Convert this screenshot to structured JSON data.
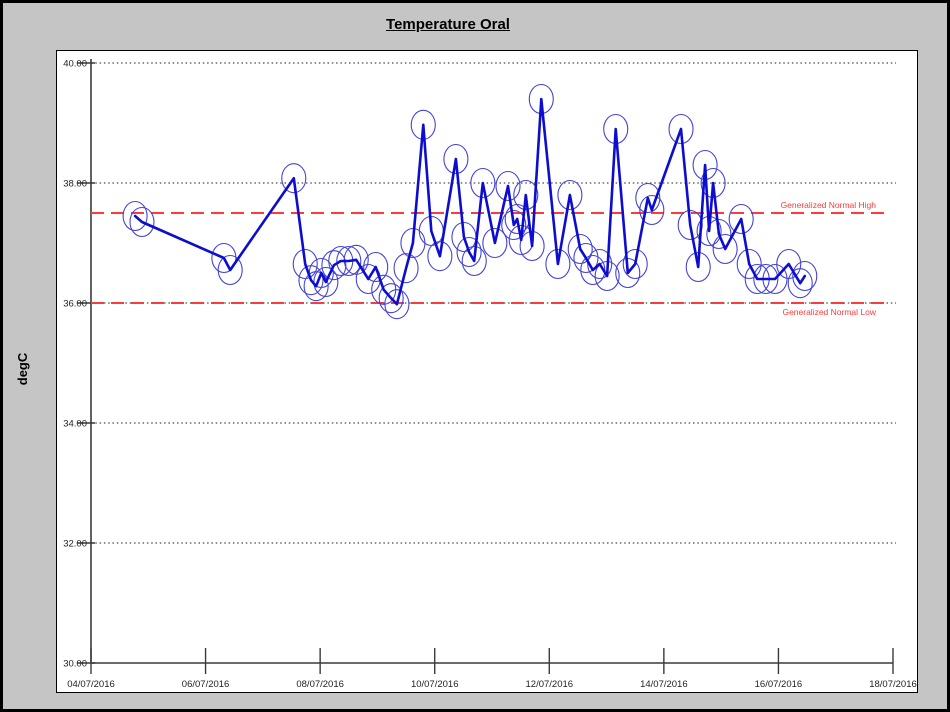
{
  "window": {
    "background": "#c5c5c5",
    "panel_background": "#ffffff",
    "border_color": "#000000"
  },
  "chart_data": {
    "type": "line",
    "title": "Temperature Oral",
    "ylabel": "degC",
    "ylim": [
      30,
      40
    ],
    "grid": "dotted-horizontal",
    "legend_position": "none",
    "axis_color": "#3a3a3a",
    "grid_color": "#4a4a4a",
    "y_ticks": [
      {
        "value": 30,
        "label": "30.00"
      },
      {
        "value": 32,
        "label": "32.00"
      },
      {
        "value": 34,
        "label": "34.00"
      },
      {
        "value": 36,
        "label": "36.00"
      },
      {
        "value": 38,
        "label": "38.00"
      },
      {
        "value": 40,
        "label": "40.00"
      }
    ],
    "x_axis_days": 14,
    "x_ticks": [
      {
        "t": 0,
        "label": "04/07/2016"
      },
      {
        "t": 2,
        "label": "06/07/2016"
      },
      {
        "t": 4,
        "label": "08/07/2016"
      },
      {
        "t": 6,
        "label": "10/07/2016"
      },
      {
        "t": 8,
        "label": "12/07/2016"
      },
      {
        "t": 10,
        "label": "14/07/2016"
      },
      {
        "t": 12,
        "label": "16/07/2016"
      },
      {
        "t": 14,
        "label": "18/07/2016"
      }
    ],
    "reference_lines": [
      {
        "label": "Generalized Normal High",
        "value": 37.5,
        "color": "#ff3a3a",
        "label_side": "above"
      },
      {
        "label": "Generalized Normal Low",
        "value": 36.0,
        "color": "#ff3a3a",
        "label_side": "below"
      }
    ],
    "series": [
      {
        "name": "Temperature Oral",
        "color": "#0d0dd0",
        "marker": "circle-outline",
        "marker_color": "#4444d6",
        "points": [
          {
            "t": 0.77,
            "temp": 37.45
          },
          {
            "t": 0.89,
            "temp": 37.35
          },
          {
            "t": 2.32,
            "temp": 36.75
          },
          {
            "t": 2.43,
            "temp": 36.55
          },
          {
            "t": 3.54,
            "temp": 38.08
          },
          {
            "t": 3.74,
            "temp": 36.65
          },
          {
            "t": 3.84,
            "temp": 36.38
          },
          {
            "t": 3.93,
            "temp": 36.28
          },
          {
            "t": 4.02,
            "temp": 36.5
          },
          {
            "t": 4.1,
            "temp": 36.35
          },
          {
            "t": 4.24,
            "temp": 36.63
          },
          {
            "t": 4.36,
            "temp": 36.7
          },
          {
            "t": 4.5,
            "temp": 36.7
          },
          {
            "t": 4.63,
            "temp": 36.72
          },
          {
            "t": 4.84,
            "temp": 36.4
          },
          {
            "t": 4.97,
            "temp": 36.6
          },
          {
            "t": 5.11,
            "temp": 36.22
          },
          {
            "t": 5.24,
            "temp": 36.08
          },
          {
            "t": 5.34,
            "temp": 35.98
          },
          {
            "t": 5.5,
            "temp": 36.58
          },
          {
            "t": 5.62,
            "temp": 37.0
          },
          {
            "t": 5.8,
            "temp": 38.97
          },
          {
            "t": 5.94,
            "temp": 37.2
          },
          {
            "t": 6.09,
            "temp": 36.78
          },
          {
            "t": 6.37,
            "temp": 38.4
          },
          {
            "t": 6.51,
            "temp": 37.1
          },
          {
            "t": 6.6,
            "temp": 36.85
          },
          {
            "t": 6.69,
            "temp": 36.7
          },
          {
            "t": 6.84,
            "temp": 38.0
          },
          {
            "t": 7.05,
            "temp": 37.0
          },
          {
            "t": 7.28,
            "temp": 37.95
          },
          {
            "t": 7.38,
            "temp": 37.3
          },
          {
            "t": 7.44,
            "temp": 37.4
          },
          {
            "t": 7.51,
            "temp": 37.05
          },
          {
            "t": 7.59,
            "temp": 37.8
          },
          {
            "t": 7.7,
            "temp": 36.95
          },
          {
            "t": 7.86,
            "temp": 39.4
          },
          {
            "t": 8.15,
            "temp": 36.65
          },
          {
            "t": 8.36,
            "temp": 37.8
          },
          {
            "t": 8.54,
            "temp": 36.9
          },
          {
            "t": 8.64,
            "temp": 36.75
          },
          {
            "t": 8.76,
            "temp": 36.55
          },
          {
            "t": 8.88,
            "temp": 36.65
          },
          {
            "t": 9.01,
            "temp": 36.45
          },
          {
            "t": 9.16,
            "temp": 38.9
          },
          {
            "t": 9.37,
            "temp": 36.5
          },
          {
            "t": 9.5,
            "temp": 36.65
          },
          {
            "t": 9.72,
            "temp": 37.75
          },
          {
            "t": 9.79,
            "temp": 37.55
          },
          {
            "t": 10.3,
            "temp": 38.9
          },
          {
            "t": 10.46,
            "temp": 37.3
          },
          {
            "t": 10.6,
            "temp": 36.6
          },
          {
            "t": 10.72,
            "temp": 38.3
          },
          {
            "t": 10.79,
            "temp": 37.2
          },
          {
            "t": 10.86,
            "temp": 38.0
          },
          {
            "t": 10.96,
            "temp": 37.15
          },
          {
            "t": 11.07,
            "temp": 36.9
          },
          {
            "t": 11.35,
            "temp": 37.4
          },
          {
            "t": 11.49,
            "temp": 36.65
          },
          {
            "t": 11.63,
            "temp": 36.4
          },
          {
            "t": 11.78,
            "temp": 36.4
          },
          {
            "t": 11.94,
            "temp": 36.4
          },
          {
            "t": 12.18,
            "temp": 36.65
          },
          {
            "t": 12.38,
            "temp": 36.33
          },
          {
            "t": 12.46,
            "temp": 36.45
          }
        ]
      }
    ]
  }
}
